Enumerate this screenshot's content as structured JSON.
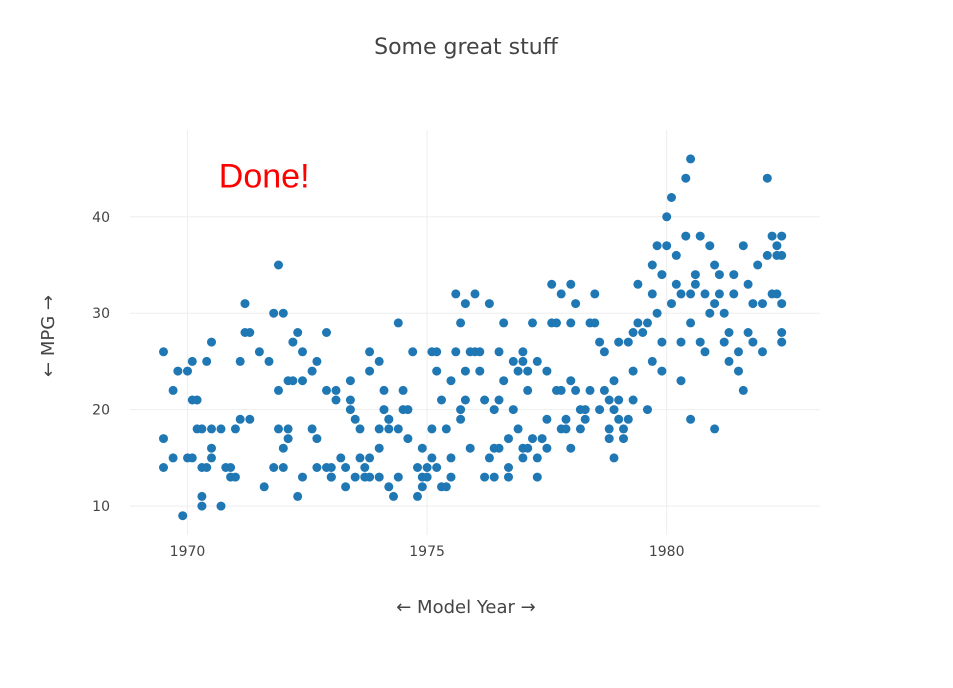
{
  "chart_data": {
    "type": "scatter",
    "title": "Some great stuff",
    "xlabel": "← Model Year →",
    "ylabel": "← MPG →",
    "xlim": [
      1968.8,
      1983.2
    ],
    "ylim": [
      7,
      49
    ],
    "xticks": [
      1970,
      1975,
      1980
    ],
    "yticks": [
      10,
      20,
      30,
      40
    ],
    "grid": true,
    "marker_color": "#1f77b4",
    "annotation": {
      "text": "Done!",
      "color": "#ff0000",
      "x": 1971.6,
      "y": 44.3
    },
    "points": [
      [
        1969.5,
        26
      ],
      [
        1969.5,
        17
      ],
      [
        1969.5,
        14
      ],
      [
        1969.7,
        22
      ],
      [
        1969.7,
        15
      ],
      [
        1969.8,
        24
      ],
      [
        1969.9,
        9
      ],
      [
        1970.0,
        24
      ],
      [
        1970.0,
        15
      ],
      [
        1970.1,
        25
      ],
      [
        1970.1,
        21
      ],
      [
        1970.1,
        15
      ],
      [
        1970.2,
        21
      ],
      [
        1970.2,
        18
      ],
      [
        1970.3,
        14
      ],
      [
        1970.3,
        18
      ],
      [
        1970.3,
        10
      ],
      [
        1970.3,
        11
      ],
      [
        1970.4,
        25
      ],
      [
        1970.4,
        14
      ],
      [
        1970.5,
        27
      ],
      [
        1970.5,
        18
      ],
      [
        1970.5,
        16
      ],
      [
        1970.5,
        15
      ],
      [
        1970.7,
        18
      ],
      [
        1970.7,
        10
      ],
      [
        1970.8,
        14
      ],
      [
        1970.9,
        14
      ],
      [
        1970.9,
        13
      ],
      [
        1971.0,
        18
      ],
      [
        1971.0,
        13
      ],
      [
        1971.1,
        25
      ],
      [
        1971.1,
        19
      ],
      [
        1971.2,
        31
      ],
      [
        1971.2,
        28
      ],
      [
        1971.3,
        28
      ],
      [
        1971.3,
        19
      ],
      [
        1971.5,
        26
      ],
      [
        1971.6,
        12
      ],
      [
        1971.7,
        25
      ],
      [
        1971.8,
        30
      ],
      [
        1971.8,
        14
      ],
      [
        1971.9,
        35
      ],
      [
        1971.9,
        22
      ],
      [
        1971.9,
        18
      ],
      [
        1972.0,
        30
      ],
      [
        1972.0,
        16
      ],
      [
        1972.0,
        14
      ],
      [
        1972.1,
        23
      ],
      [
        1972.1,
        18
      ],
      [
        1972.1,
        17
      ],
      [
        1972.2,
        23
      ],
      [
        1972.2,
        27
      ],
      [
        1972.3,
        28
      ],
      [
        1972.3,
        11
      ],
      [
        1972.4,
        26
      ],
      [
        1972.4,
        13
      ],
      [
        1972.4,
        23
      ],
      [
        1972.6,
        18
      ],
      [
        1972.6,
        24
      ],
      [
        1972.7,
        14
      ],
      [
        1972.7,
        25
      ],
      [
        1972.7,
        17
      ],
      [
        1972.9,
        28
      ],
      [
        1972.9,
        22
      ],
      [
        1972.9,
        14
      ],
      [
        1973.0,
        13
      ],
      [
        1973.0,
        14
      ],
      [
        1973.0,
        13
      ],
      [
        1973.1,
        21
      ],
      [
        1973.1,
        22
      ],
      [
        1973.2,
        15
      ],
      [
        1973.3,
        12
      ],
      [
        1973.3,
        14
      ],
      [
        1973.4,
        20
      ],
      [
        1973.4,
        23
      ],
      [
        1973.4,
        21
      ],
      [
        1973.5,
        19
      ],
      [
        1973.5,
        13
      ],
      [
        1973.6,
        15
      ],
      [
        1973.6,
        18
      ],
      [
        1973.7,
        14
      ],
      [
        1973.7,
        13
      ],
      [
        1973.8,
        24
      ],
      [
        1973.8,
        13
      ],
      [
        1973.8,
        26
      ],
      [
        1973.8,
        15
      ],
      [
        1974.0,
        25
      ],
      [
        1974.0,
        16
      ],
      [
        1974.0,
        18
      ],
      [
        1974.0,
        13
      ],
      [
        1974.1,
        20
      ],
      [
        1974.1,
        22
      ],
      [
        1974.2,
        18
      ],
      [
        1974.2,
        12
      ],
      [
        1974.2,
        19
      ],
      [
        1974.2,
        19
      ],
      [
        1974.3,
        11
      ],
      [
        1974.4,
        29
      ],
      [
        1974.4,
        18
      ],
      [
        1974.4,
        13
      ],
      [
        1974.5,
        20
      ],
      [
        1974.5,
        22
      ],
      [
        1974.6,
        20
      ],
      [
        1974.6,
        17
      ],
      [
        1974.7,
        26
      ],
      [
        1974.8,
        14
      ],
      [
        1974.8,
        11
      ],
      [
        1974.9,
        13
      ],
      [
        1974.9,
        12
      ],
      [
        1974.9,
        16
      ],
      [
        1975.0,
        14
      ],
      [
        1975.0,
        13
      ],
      [
        1975.1,
        26
      ],
      [
        1975.1,
        15
      ],
      [
        1975.1,
        18
      ],
      [
        1975.2,
        24
      ],
      [
        1975.2,
        26
      ],
      [
        1975.2,
        14
      ],
      [
        1975.3,
        21
      ],
      [
        1975.3,
        12
      ],
      [
        1975.4,
        18
      ],
      [
        1975.4,
        12
      ],
      [
        1975.5,
        23
      ],
      [
        1975.5,
        15
      ],
      [
        1975.5,
        13
      ],
      [
        1975.6,
        32
      ],
      [
        1975.6,
        26
      ],
      [
        1975.7,
        29
      ],
      [
        1975.7,
        20
      ],
      [
        1975.7,
        19
      ],
      [
        1975.8,
        31
      ],
      [
        1975.8,
        24
      ],
      [
        1975.8,
        21
      ],
      [
        1975.9,
        16
      ],
      [
        1975.9,
        26
      ],
      [
        1976.0,
        32
      ],
      [
        1976.0,
        26
      ],
      [
        1976.1,
        26
      ],
      [
        1976.1,
        24
      ],
      [
        1976.2,
        21
      ],
      [
        1976.2,
        13
      ],
      [
        1976.3,
        31
      ],
      [
        1976.3,
        15
      ],
      [
        1976.4,
        20
      ],
      [
        1976.4,
        16
      ],
      [
        1976.4,
        13
      ],
      [
        1976.5,
        21
      ],
      [
        1976.5,
        16
      ],
      [
        1976.5,
        26
      ],
      [
        1976.6,
        29
      ],
      [
        1976.6,
        23
      ],
      [
        1976.7,
        13
      ],
      [
        1976.7,
        14
      ],
      [
        1976.7,
        17
      ],
      [
        1976.8,
        25
      ],
      [
        1976.8,
        20
      ],
      [
        1976.9,
        24
      ],
      [
        1976.9,
        18
      ],
      [
        1977.0,
        26
      ],
      [
        1977.0,
        16
      ],
      [
        1977.0,
        25
      ],
      [
        1977.0,
        15
      ],
      [
        1977.1,
        16
      ],
      [
        1977.1,
        24
      ],
      [
        1977.1,
        22
      ],
      [
        1977.2,
        29
      ],
      [
        1977.2,
        17
      ],
      [
        1977.3,
        13
      ],
      [
        1977.3,
        25
      ],
      [
        1977.3,
        15
      ],
      [
        1977.4,
        17
      ],
      [
        1977.5,
        24
      ],
      [
        1977.5,
        16
      ],
      [
        1977.5,
        19
      ],
      [
        1977.6,
        33
      ],
      [
        1977.6,
        29
      ],
      [
        1977.7,
        29
      ],
      [
        1977.7,
        22
      ],
      [
        1977.8,
        32
      ],
      [
        1977.8,
        22
      ],
      [
        1977.8,
        18
      ],
      [
        1977.9,
        19
      ],
      [
        1977.9,
        18
      ],
      [
        1978.0,
        16
      ],
      [
        1978.0,
        23
      ],
      [
        1978.0,
        33
      ],
      [
        1978.0,
        29
      ],
      [
        1978.1,
        31
      ],
      [
        1978.1,
        22
      ],
      [
        1978.2,
        20
      ],
      [
        1978.2,
        18
      ],
      [
        1978.3,
        19
      ],
      [
        1978.3,
        20
      ],
      [
        1978.4,
        29
      ],
      [
        1978.4,
        22
      ],
      [
        1978.5,
        32
      ],
      [
        1978.5,
        29
      ],
      [
        1978.6,
        27
      ],
      [
        1978.6,
        20
      ],
      [
        1978.7,
        26
      ],
      [
        1978.7,
        22
      ],
      [
        1978.8,
        18
      ],
      [
        1978.8,
        17
      ],
      [
        1978.8,
        21
      ],
      [
        1978.9,
        23
      ],
      [
        1978.9,
        20
      ],
      [
        1979.0,
        21
      ],
      [
        1979.0,
        19
      ],
      [
        1979.0,
        27
      ],
      [
        1979.1,
        17
      ],
      [
        1979.1,
        18
      ],
      [
        1979.2,
        19
      ],
      [
        1979.3,
        28
      ],
      [
        1979.3,
        21
      ],
      [
        1979.3,
        24
      ],
      [
        1979.4,
        33
      ],
      [
        1979.4,
        29
      ],
      [
        1979.5,
        28
      ],
      [
        1979.6,
        29
      ],
      [
        1979.7,
        35
      ],
      [
        1979.7,
        32
      ],
      [
        1979.7,
        25
      ],
      [
        1979.8,
        37
      ],
      [
        1979.8,
        30
      ],
      [
        1979.9,
        27
      ],
      [
        1979.9,
        34
      ],
      [
        1980.0,
        37
      ],
      [
        1980.0,
        40
      ],
      [
        1980.1,
        42
      ],
      [
        1980.2,
        36
      ],
      [
        1980.2,
        33
      ],
      [
        1980.3,
        32
      ],
      [
        1980.3,
        27
      ],
      [
        1980.4,
        44
      ],
      [
        1980.4,
        38
      ],
      [
        1980.5,
        46
      ],
      [
        1980.5,
        29
      ],
      [
        1980.5,
        32
      ],
      [
        1980.6,
        34
      ],
      [
        1980.6,
        33
      ],
      [
        1980.7,
        27
      ],
      [
        1980.7,
        38
      ],
      [
        1980.8,
        26
      ],
      [
        1980.8,
        32
      ],
      [
        1980.9,
        37
      ],
      [
        1980.9,
        30
      ],
      [
        1981.0,
        31
      ],
      [
        1981.0,
        35
      ],
      [
        1981.1,
        34
      ],
      [
        1981.1,
        32
      ],
      [
        1981.2,
        30
      ],
      [
        1981.2,
        27
      ],
      [
        1981.3,
        25
      ],
      [
        1981.3,
        28
      ],
      [
        1981.4,
        34
      ],
      [
        1981.4,
        32
      ],
      [
        1981.5,
        26
      ],
      [
        1981.5,
        24
      ],
      [
        1981.6,
        37
      ],
      [
        1981.6,
        22
      ],
      [
        1981.7,
        33
      ],
      [
        1981.7,
        28
      ],
      [
        1981.8,
        31
      ],
      [
        1981.8,
        27
      ],
      [
        1981.9,
        35
      ],
      [
        1982.0,
        31
      ],
      [
        1982.0,
        26
      ],
      [
        1982.1,
        44
      ],
      [
        1982.1,
        36
      ],
      [
        1982.2,
        38
      ],
      [
        1982.2,
        32
      ],
      [
        1982.3,
        37
      ],
      [
        1982.3,
        36
      ],
      [
        1982.3,
        32
      ],
      [
        1982.4,
        38
      ],
      [
        1982.4,
        31
      ],
      [
        1982.4,
        36
      ],
      [
        1982.4,
        27
      ],
      [
        1982.4,
        28
      ],
      [
        1980.3,
        23
      ],
      [
        1980.5,
        19
      ],
      [
        1979.6,
        20
      ],
      [
        1978.9,
        15
      ],
      [
        1979.9,
        24
      ],
      [
        1981.0,
        18
      ],
      [
        1979.2,
        27
      ],
      [
        1980.1,
        31
      ]
    ]
  }
}
